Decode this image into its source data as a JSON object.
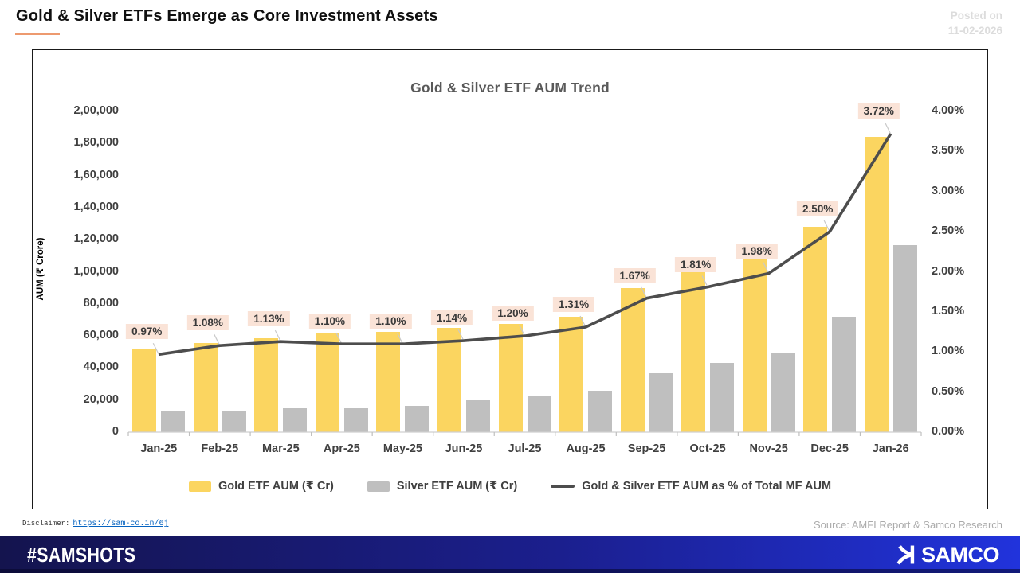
{
  "header": {
    "title": "Gold & Silver ETFs Emerge as Core Investment Assets",
    "posted_label": "Posted on",
    "posted_date": "11-02-2026"
  },
  "chart": {
    "title": "Gold & Silver ETF AUM Trend"
  },
  "chart_data": {
    "type": "bar+line",
    "title": "Gold & Silver ETF AUM Trend",
    "categories": [
      "Jan-25",
      "Feb-25",
      "Mar-25",
      "Apr-25",
      "May-25",
      "Jun-25",
      "Jul-25",
      "Aug-25",
      "Sep-25",
      "Oct-25",
      "Nov-25",
      "Dec-25",
      "Jan-26"
    ],
    "series": [
      {
        "name": "Gold ETF AUM (₹ Cr)",
        "type": "bar",
        "color": "#FBD560",
        "values": [
          52000,
          55500,
          58500,
          62000,
          62500,
          65000,
          67500,
          72000,
          90000,
          102000,
          110500,
          128000,
          184000
        ]
      },
      {
        "name": "Silver ETF AUM (₹ Cr)",
        "type": "bar",
        "color": "#BFBFBF",
        "values": [
          13000,
          13500,
          15000,
          15000,
          16500,
          20000,
          22500,
          26000,
          36500,
          43000,
          49000,
          72000,
          116500
        ]
      },
      {
        "name": "Gold & Silver ETF AUM as % of Total MF AUM",
        "type": "line",
        "color": "#4D4D4D",
        "values": [
          0.97,
          1.08,
          1.13,
          1.1,
          1.1,
          1.14,
          1.2,
          1.31,
          1.67,
          1.81,
          1.98,
          2.5,
          3.72
        ],
        "point_labels": [
          "0.97%",
          "1.08%",
          "1.13%",
          "1.10%",
          "1.10%",
          "1.14%",
          "1.20%",
          "1.31%",
          "1.67%",
          "1.81%",
          "1.98%",
          "2.50%",
          "3.72%"
        ]
      }
    ],
    "axes": {
      "y_left": {
        "title": "AUM (₹ Crore)",
        "min": 0,
        "max": 200000,
        "ticks": [
          "0",
          "20,000",
          "40,000",
          "60,000",
          "80,000",
          "1,00,000",
          "1,20,000",
          "1,40,000",
          "1,60,000",
          "1,80,000",
          "2,00,000"
        ]
      },
      "y_right": {
        "min": 0,
        "max": 4,
        "ticks": [
          "0.00%",
          "0.50%",
          "1.00%",
          "1.50%",
          "2.00%",
          "2.50%",
          "3.00%",
          "3.50%",
          "4.00%"
        ]
      }
    },
    "legend_position": "bottom",
    "grid": false,
    "point_label_bg": "#FAE3D7"
  },
  "footnotes": {
    "disclaimer_label": "Disclaimer:",
    "disclaimer_link": "https://sam-co.in/6j",
    "source": "Source: AMFI Report & Samco Research"
  },
  "footer": {
    "hashtag": "#SAMSHOTS",
    "brand": "SAMCO"
  },
  "colors": {
    "accent_underline": "#ED9A6F",
    "gold": "#FBD560",
    "silver": "#BFBFBF",
    "line": "#4D4D4D",
    "label_bg": "#FAE3D7"
  }
}
